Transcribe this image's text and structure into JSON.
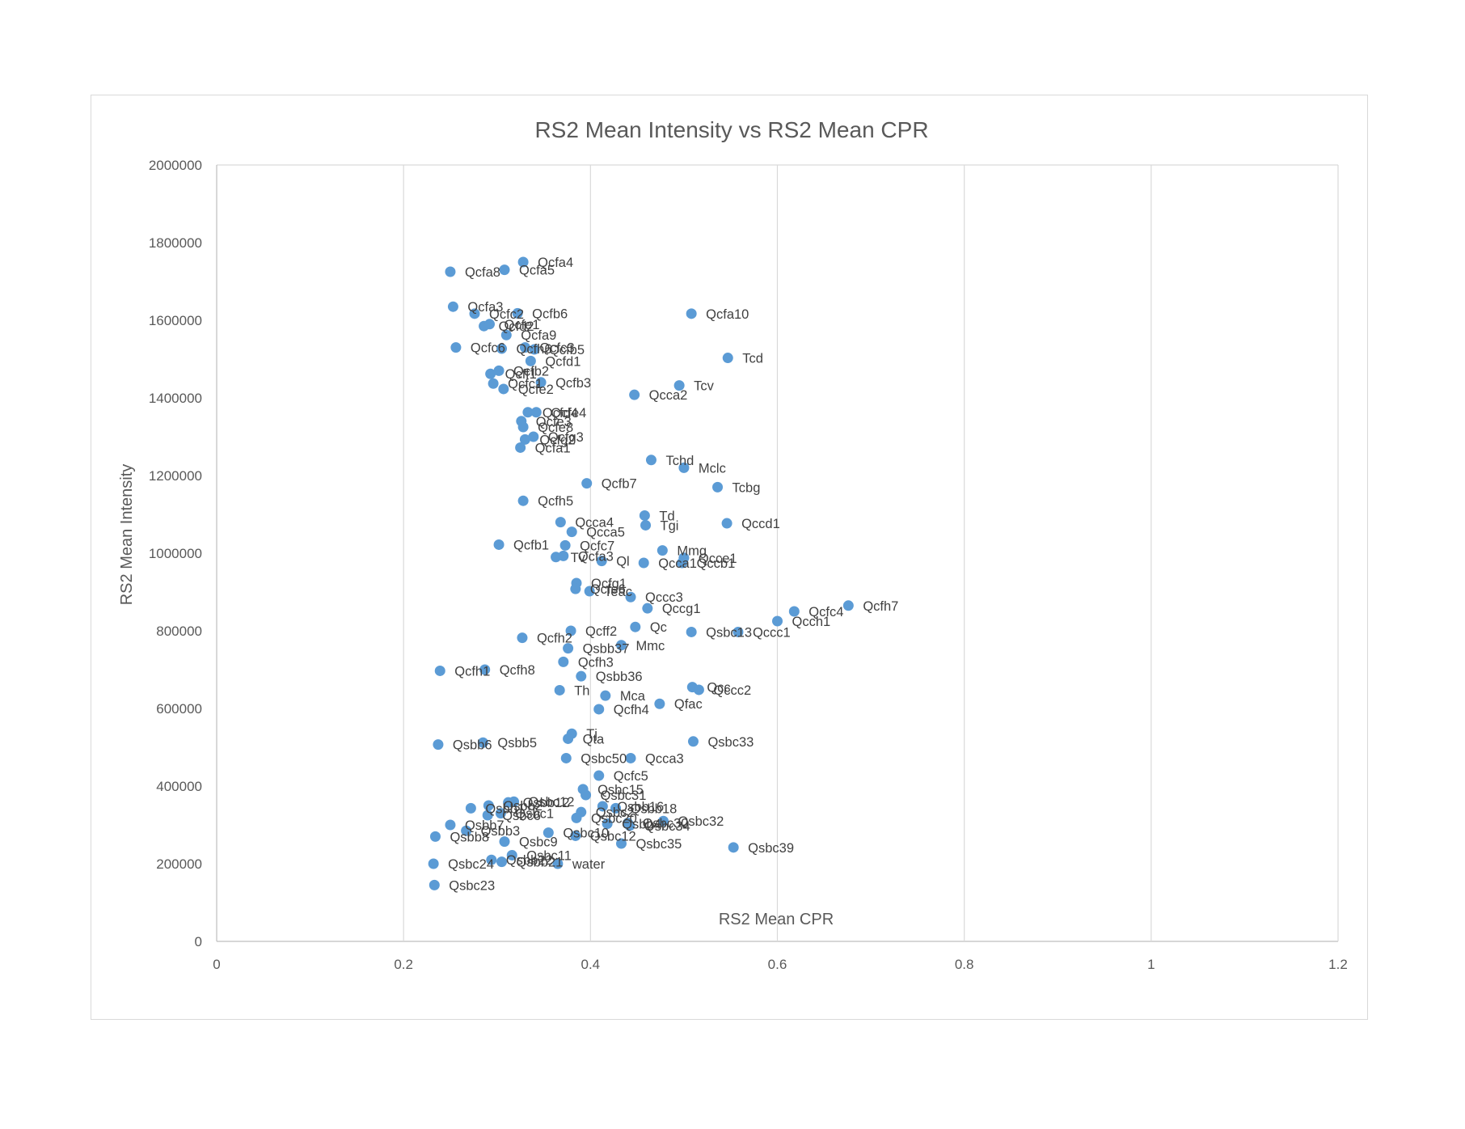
{
  "chart_data": {
    "type": "scatter",
    "title": "RS2 Mean Intensity vs RS2 Mean CPR",
    "xlabel": "RS2 Mean CPR",
    "ylabel": "RS2 Mean Intensity",
    "xlim": [
      0,
      1.2
    ],
    "ylim": [
      0,
      2000000
    ],
    "xticks": [
      "0",
      "0.2",
      "0.4",
      "0.6",
      "0.8",
      "1",
      "1.2"
    ],
    "yticks": [
      "0",
      "200000",
      "400000",
      "600000",
      "800000",
      "1000000",
      "1200000",
      "1400000",
      "1600000",
      "1800000",
      "2000000"
    ],
    "grid": "vertical",
    "legend": "none",
    "marker_color": "#5b9bd5",
    "points": [
      {
        "label": "Qcfa4",
        "x": 0.328,
        "y": 1750000
      },
      {
        "label": "Qcfa5",
        "x": 0.308,
        "y": 1730000
      },
      {
        "label": "Qcfa8",
        "x": 0.25,
        "y": 1725000
      },
      {
        "label": "Qcfa3",
        "x": 0.253,
        "y": 1635000
      },
      {
        "label": "Qcfc2",
        "x": 0.276,
        "y": 1617000
      },
      {
        "label": "Qcfb6",
        "x": 0.322,
        "y": 1618000
      },
      {
        "label": "Qcfa10",
        "x": 0.508,
        "y": 1617000
      },
      {
        "label": "Qcfd2",
        "x": 0.286,
        "y": 1585000
      },
      {
        "label": "Qcfe1",
        "x": 0.292,
        "y": 1590000
      },
      {
        "label": "Qcfa9",
        "x": 0.31,
        "y": 1562000
      },
      {
        "label": "Qcfc6",
        "x": 0.256,
        "y": 1530000
      },
      {
        "label": "Qcfh6",
        "x": 0.305,
        "y": 1527000
      },
      {
        "label": "Qcfc3",
        "x": 0.33,
        "y": 1530000
      },
      {
        "label": "Qcfb5",
        "x": 0.34,
        "y": 1525000
      },
      {
        "label": "Tcd",
        "x": 0.547,
        "y": 1503000
      },
      {
        "label": "Qcfd1",
        "x": 0.336,
        "y": 1495000
      },
      {
        "label": "Qcff1",
        "x": 0.293,
        "y": 1462000
      },
      {
        "label": "Qcfb2",
        "x": 0.302,
        "y": 1470000
      },
      {
        "label": "Qcfb3",
        "x": 0.347,
        "y": 1440000
      },
      {
        "label": "Qcfc1",
        "x": 0.296,
        "y": 1437000
      },
      {
        "label": "Qcfe2",
        "x": 0.307,
        "y": 1423000
      },
      {
        "label": "Tcv",
        "x": 0.495,
        "y": 1432000
      },
      {
        "label": "Qcca2",
        "x": 0.447,
        "y": 1408000
      },
      {
        "label": "Qcfd4",
        "x": 0.333,
        "y": 1363000
      },
      {
        "label": "Qcfe4",
        "x": 0.342,
        "y": 1363000
      },
      {
        "label": "Qcfe3",
        "x": 0.326,
        "y": 1340000
      },
      {
        "label": "Qcfe8",
        "x": 0.328,
        "y": 1325000
      },
      {
        "label": "Qcfg3",
        "x": 0.339,
        "y": 1300000
      },
      {
        "label": "Qcfg2",
        "x": 0.33,
        "y": 1293000
      },
      {
        "label": "Qcfa1",
        "x": 0.325,
        "y": 1272000
      },
      {
        "label": "Tchd",
        "x": 0.465,
        "y": 1240000
      },
      {
        "label": "Mclc",
        "x": 0.5,
        "y": 1220000
      },
      {
        "label": "Qcfb7",
        "x": 0.396,
        "y": 1180000
      },
      {
        "label": "Tcbg",
        "x": 0.536,
        "y": 1170000
      },
      {
        "label": "Qcfh5",
        "x": 0.328,
        "y": 1135000
      },
      {
        "label": "Td",
        "x": 0.458,
        "y": 1097000
      },
      {
        "label": "Qcca4",
        "x": 0.368,
        "y": 1080000
      },
      {
        "label": "Tgi",
        "x": 0.459,
        "y": 1072000
      },
      {
        "label": "Qccd1",
        "x": 0.546,
        "y": 1077000
      },
      {
        "label": "Qcca5",
        "x": 0.38,
        "y": 1055000
      },
      {
        "label": "Qcfb1",
        "x": 0.302,
        "y": 1022000
      },
      {
        "label": "Qcfc7",
        "x": 0.373,
        "y": 1020000
      },
      {
        "label": "Mmg",
        "x": 0.477,
        "y": 1007000
      },
      {
        "label": "Tv",
        "x": 0.363,
        "y": 990000
      },
      {
        "label": "Qcfa3",
        "x": 0.371,
        "y": 993000
      },
      {
        "label": "Ql",
        "x": 0.412,
        "y": 980000
      },
      {
        "label": "Qcca1",
        "x": 0.457,
        "y": 975000
      },
      {
        "label": "Qccb1",
        "x": 0.498,
        "y": 975000
      },
      {
        "label": "Qcce1",
        "x": 0.5,
        "y": 988000
      },
      {
        "label": "Qcfg1",
        "x": 0.385,
        "y": 923000
      },
      {
        "label": "Qcfe6",
        "x": 0.384,
        "y": 908000
      },
      {
        "label": "Teac",
        "x": 0.399,
        "y": 902000
      },
      {
        "label": "Qccc3",
        "x": 0.443,
        "y": 887000
      },
      {
        "label": "Qcfh7",
        "x": 0.676,
        "y": 865000
      },
      {
        "label": "Qcfc4",
        "x": 0.618,
        "y": 850000
      },
      {
        "label": "Qccg1",
        "x": 0.461,
        "y": 858000
      },
      {
        "label": "Qcch1",
        "x": 0.6,
        "y": 825000
      },
      {
        "label": "Qcff2",
        "x": 0.379,
        "y": 800000
      },
      {
        "label": "Qc",
        "x": 0.448,
        "y": 810000
      },
      {
        "label": "Qsbc13",
        "x": 0.508,
        "y": 797000
      },
      {
        "label": "Qccc1",
        "x": 0.558,
        "y": 797000
      },
      {
        "label": "Qcfh2",
        "x": 0.327,
        "y": 782000
      },
      {
        "label": "Mmc",
        "x": 0.433,
        "y": 763000
      },
      {
        "label": "Qsbb37",
        "x": 0.376,
        "y": 755000
      },
      {
        "label": "Qcfh1",
        "x": 0.239,
        "y": 697000
      },
      {
        "label": "Qcfh8",
        "x": 0.287,
        "y": 700000
      },
      {
        "label": "Qcfh3",
        "x": 0.371,
        "y": 720000
      },
      {
        "label": "Qsbb36",
        "x": 0.39,
        "y": 683000
      },
      {
        "label": "Qcc",
        "x": 0.509,
        "y": 655000
      },
      {
        "label": "Qccc2",
        "x": 0.516,
        "y": 648000
      },
      {
        "label": "Th",
        "x": 0.367,
        "y": 647000
      },
      {
        "label": "Mca",
        "x": 0.416,
        "y": 633000
      },
      {
        "label": "Qfac",
        "x": 0.474,
        "y": 612000
      },
      {
        "label": "Qcfh4",
        "x": 0.409,
        "y": 598000
      },
      {
        "label": "Tj",
        "x": 0.38,
        "y": 535000
      },
      {
        "label": "Qta",
        "x": 0.376,
        "y": 522000
      },
      {
        "label": "Qsbc33",
        "x": 0.51,
        "y": 515000
      },
      {
        "label": "Qsbb6",
        "x": 0.237,
        "y": 507000
      },
      {
        "label": "Qsbb5",
        "x": 0.285,
        "y": 512000
      },
      {
        "label": "Qsbc50",
        "x": 0.374,
        "y": 472000
      },
      {
        "label": "Qcca3",
        "x": 0.443,
        "y": 472000
      },
      {
        "label": "Qcfc5",
        "x": 0.409,
        "y": 427000
      },
      {
        "label": "Qsbc15",
        "x": 0.392,
        "y": 392000
      },
      {
        "label": "Qsbc31",
        "x": 0.395,
        "y": 377000
      },
      {
        "label": "Qsbb12",
        "x": 0.312,
        "y": 358000
      },
      {
        "label": "Qsbc12",
        "x": 0.318,
        "y": 360000
      },
      {
        "label": "Qsbb16",
        "x": 0.413,
        "y": 348000
      },
      {
        "label": "Qsbb18",
        "x": 0.427,
        "y": 343000
      },
      {
        "label": "Qsbb1",
        "x": 0.272,
        "y": 343000
      },
      {
        "label": "Qsbb2",
        "x": 0.291,
        "y": 350000
      },
      {
        "label": "Qsbc2",
        "x": 0.39,
        "y": 333000
      },
      {
        "label": "Qsbc6",
        "x": 0.29,
        "y": 325000
      },
      {
        "label": "Qsbc1",
        "x": 0.304,
        "y": 330000
      },
      {
        "label": "Qsbc32",
        "x": 0.478,
        "y": 310000
      },
      {
        "label": "Qsbc30",
        "x": 0.44,
        "y": 305000
      },
      {
        "label": "Qsbc34",
        "x": 0.442,
        "y": 298000
      },
      {
        "label": "Qsbb4",
        "x": 0.418,
        "y": 303000
      },
      {
        "label": "Qsbc20",
        "x": 0.385,
        "y": 318000
      },
      {
        "label": "Qsbb7",
        "x": 0.25,
        "y": 300000
      },
      {
        "label": "Qsbb3",
        "x": 0.267,
        "y": 285000
      },
      {
        "label": "Qsbb8",
        "x": 0.234,
        "y": 270000
      },
      {
        "label": "Qsbc10",
        "x": 0.355,
        "y": 280000
      },
      {
        "label": "Qsbc12",
        "x": 0.384,
        "y": 272000
      },
      {
        "label": "Qsbc9",
        "x": 0.308,
        "y": 257000
      },
      {
        "label": "Qsbc35",
        "x": 0.433,
        "y": 252000
      },
      {
        "label": "Qsbc39",
        "x": 0.553,
        "y": 242000
      },
      {
        "label": "Qsbc11",
        "x": 0.316,
        "y": 222000
      },
      {
        "label": "Qsbc24",
        "x": 0.232,
        "y": 200000
      },
      {
        "label": "Qsbb22",
        "x": 0.294,
        "y": 210000
      },
      {
        "label": "Qsbb21",
        "x": 0.305,
        "y": 205000
      },
      {
        "label": "water",
        "x": 0.365,
        "y": 200000
      },
      {
        "label": "Qsbc23",
        "x": 0.233,
        "y": 145000
      }
    ]
  }
}
